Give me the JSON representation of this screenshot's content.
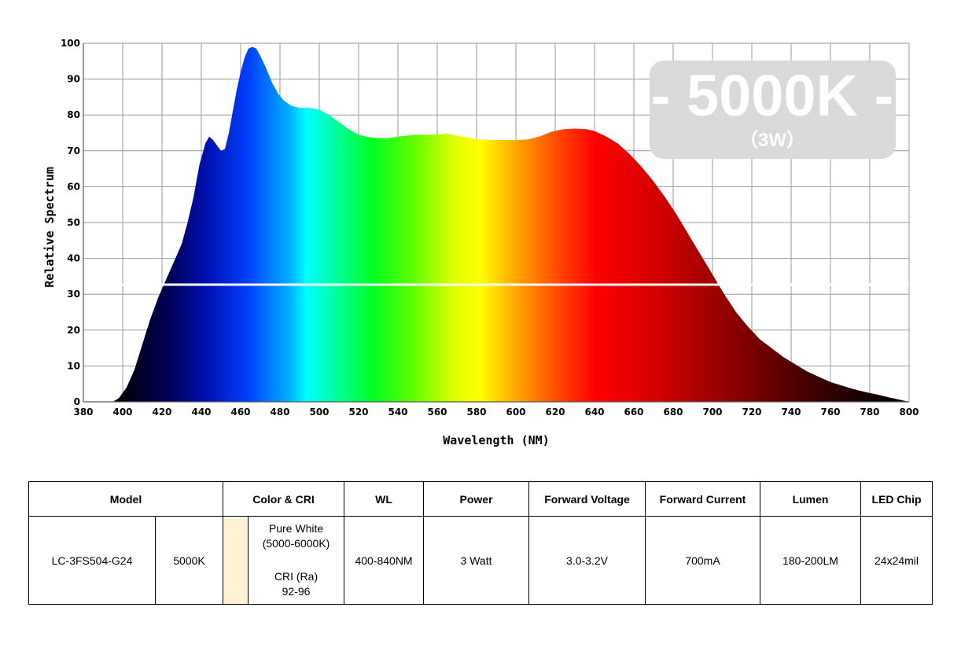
{
  "chart_data": {
    "type": "area",
    "xlabel": "Wavelength (NM)",
    "ylabel": "Relative Spectrum",
    "xlim": [
      380,
      800
    ],
    "ylim": [
      0,
      100
    ],
    "x_ticks": [
      380,
      400,
      420,
      440,
      460,
      480,
      500,
      520,
      540,
      560,
      580,
      600,
      620,
      640,
      660,
      680,
      700,
      720,
      740,
      760,
      780,
      800
    ],
    "y_ticks": [
      0,
      10,
      20,
      30,
      40,
      50,
      60,
      70,
      80,
      90,
      100
    ],
    "grid": true,
    "fill": "visible-spectrum gradient",
    "points": [
      [
        380,
        0
      ],
      [
        395,
        0
      ],
      [
        398,
        1
      ],
      [
        402,
        4
      ],
      [
        406,
        9
      ],
      [
        410,
        16
      ],
      [
        414,
        23
      ],
      [
        418,
        29
      ],
      [
        422,
        34
      ],
      [
        426,
        39
      ],
      [
        430,
        44
      ],
      [
        433,
        50
      ],
      [
        436,
        57
      ],
      [
        439,
        66
      ],
      [
        442,
        72
      ],
      [
        444,
        74
      ],
      [
        446,
        73
      ],
      [
        448,
        71.5
      ],
      [
        450,
        70
      ],
      [
        452,
        70.5
      ],
      [
        454,
        75
      ],
      [
        456,
        81
      ],
      [
        458,
        87
      ],
      [
        460,
        92
      ],
      [
        462,
        96
      ],
      [
        464,
        98.5
      ],
      [
        466,
        99
      ],
      [
        468,
        98.5
      ],
      [
        470,
        96.5
      ],
      [
        473,
        93
      ],
      [
        476,
        89
      ],
      [
        479,
        86
      ],
      [
        482,
        84
      ],
      [
        486,
        82.5
      ],
      [
        490,
        82
      ],
      [
        495,
        82
      ],
      [
        500,
        81.5
      ],
      [
        505,
        80
      ],
      [
        510,
        78
      ],
      [
        515,
        76
      ],
      [
        520,
        74.5
      ],
      [
        525,
        73.8
      ],
      [
        530,
        73.5
      ],
      [
        535,
        73.5
      ],
      [
        540,
        74
      ],
      [
        550,
        74.5
      ],
      [
        560,
        74.5
      ],
      [
        565,
        74.8
      ],
      [
        570,
        74.2
      ],
      [
        575,
        73.8
      ],
      [
        580,
        73.2
      ],
      [
        590,
        73
      ],
      [
        600,
        73
      ],
      [
        606,
        73.2
      ],
      [
        612,
        74
      ],
      [
        618,
        75.3
      ],
      [
        624,
        76
      ],
      [
        630,
        76.2
      ],
      [
        636,
        76
      ],
      [
        640,
        75.5
      ],
      [
        646,
        74
      ],
      [
        652,
        72
      ],
      [
        658,
        69
      ],
      [
        664,
        65.5
      ],
      [
        670,
        61.5
      ],
      [
        676,
        57
      ],
      [
        682,
        52
      ],
      [
        688,
        46.5
      ],
      [
        694,
        41
      ],
      [
        700,
        35.5
      ],
      [
        706,
        30
      ],
      [
        712,
        25
      ],
      [
        718,
        21
      ],
      [
        724,
        17.5
      ],
      [
        730,
        15
      ],
      [
        736,
        12.5
      ],
      [
        742,
        10.5
      ],
      [
        748,
        8.5
      ],
      [
        754,
        7
      ],
      [
        760,
        5.5
      ],
      [
        766,
        4.5
      ],
      [
        772,
        3.5
      ],
      [
        778,
        2.7
      ],
      [
        784,
        2
      ],
      [
        790,
        1.2
      ],
      [
        795,
        0.6
      ],
      [
        800,
        0
      ]
    ]
  },
  "badge": {
    "main": "- 5000K -",
    "sub": "（3W）"
  },
  "table": {
    "headers": {
      "model": "Model",
      "color_cri": "Color & CRI",
      "wl": "WL",
      "power": "Power",
      "forward_voltage": "Forward Voltage",
      "forward_current": "Forward Current",
      "lumen": "Lumen",
      "led_chip": "LED Chip"
    },
    "row": {
      "model_code": "LC-3FS504-G24",
      "cct": "5000K",
      "swatch_color": "#fff1d4",
      "color_name": "Pure White",
      "color_range": "(5000-6000K)",
      "cri_label": "CRI (Ra)",
      "cri_value": "92-96",
      "wl": "400-840NM",
      "power": "3 Watt",
      "forward_voltage": "3.0-3.2V",
      "forward_current": "700mA",
      "lumen": "180-200LM",
      "led_chip": "24x24mil"
    }
  }
}
